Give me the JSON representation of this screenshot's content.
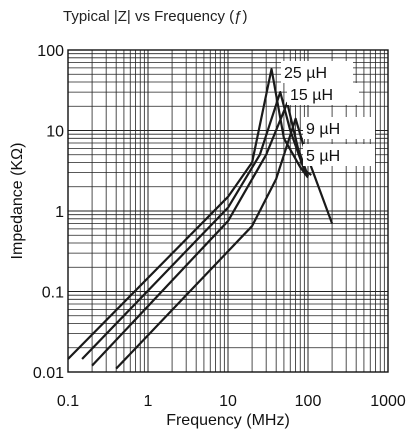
{
  "chart_data": {
    "type": "line",
    "title": "Typical |Z| vs Frequency (ƒ)",
    "xlabel": "Frequency (MHz)",
    "ylabel": "Impedance (KΩ)",
    "x_scale": "log",
    "y_scale": "log",
    "xlim": [
      0.1,
      1000
    ],
    "ylim": [
      0.01,
      100
    ],
    "x_ticks": [
      {
        "value": 0.1,
        "label": "0.1"
      },
      {
        "value": 1,
        "label": "1"
      },
      {
        "value": 10,
        "label": "10"
      },
      {
        "value": 100,
        "label": "100"
      },
      {
        "value": 1000,
        "label": "1000"
      }
    ],
    "y_ticks": [
      {
        "value": 0.01,
        "label": "0.01"
      },
      {
        "value": 0.1,
        "label": "0.1"
      },
      {
        "value": 1,
        "label": "1"
      },
      {
        "value": 10,
        "label": "10"
      },
      {
        "value": 100,
        "label": "100"
      }
    ],
    "grid": true,
    "series": [
      {
        "name": "25 µH",
        "x": [
          0.1,
          10,
          20,
          35,
          50,
          80,
          100
        ],
        "y": [
          0.0145,
          1.5,
          4,
          58,
          8,
          3.5,
          2.6
        ]
      },
      {
        "name": "15 µH",
        "x": [
          0.15,
          10,
          25,
          45,
          60,
          90,
          110
        ],
        "y": [
          0.0145,
          1.1,
          5,
          30,
          10,
          3.2,
          2.8
        ]
      },
      {
        "name": "9 µH",
        "x": [
          0.2,
          10,
          30,
          55,
          75,
          100
        ],
        "y": [
          0.012,
          0.75,
          5,
          22,
          6,
          2.7
        ]
      },
      {
        "name": "5 µH",
        "x": [
          0.4,
          20,
          40,
          70,
          90,
          110,
          200
        ],
        "y": [
          0.011,
          0.65,
          2.5,
          14,
          6,
          3.5,
          0.7
        ]
      }
    ],
    "series_labels_position": "right of peaks, stacked"
  }
}
